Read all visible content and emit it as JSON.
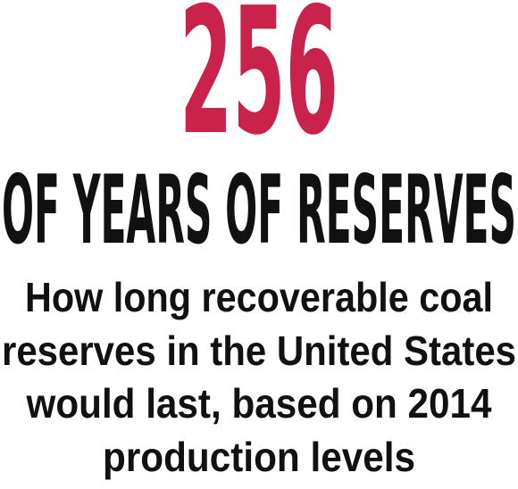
{
  "headline": {
    "number": "256",
    "label": "OF YEARS OF RESERVES"
  },
  "description": [
    "How long recoverable coal",
    "reserves in the United States",
    "would last, based on 2014",
    "production levels"
  ]
}
